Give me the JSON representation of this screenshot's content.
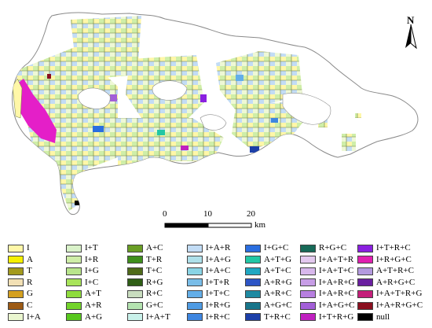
{
  "north_arrow": {
    "label": "N",
    "icon": "north-arrow-icon"
  },
  "scale_bar": {
    "ticks": [
      "0",
      "10",
      "20"
    ],
    "unit": "km"
  },
  "legend": {
    "columns": [
      [
        {
          "label": "I",
          "color": "#fff7a8"
        },
        {
          "label": "A",
          "color": "#f5f000"
        },
        {
          "label": "T",
          "color": "#a39a1e"
        },
        {
          "label": "R",
          "color": "#f2e0b5"
        },
        {
          "label": "G",
          "color": "#d4a020"
        },
        {
          "label": "C",
          "color": "#9c5a14"
        },
        {
          "label": "I+A",
          "color": "#eaf6cf"
        }
      ],
      [
        {
          "label": "I+T",
          "color": "#d9f2c9"
        },
        {
          "label": "I+R",
          "color": "#cfeea8"
        },
        {
          "label": "I+G",
          "color": "#b9e58c"
        },
        {
          "label": "I+C",
          "color": "#a8e45a"
        },
        {
          "label": "A+T",
          "color": "#8fdc3c"
        },
        {
          "label": "A+R",
          "color": "#72d32a"
        },
        {
          "label": "A+G",
          "color": "#58c81e"
        }
      ],
      [
        {
          "label": "A+C",
          "color": "#6a9e25"
        },
        {
          "label": "T+R",
          "color": "#3f8f1c"
        },
        {
          "label": "T+C",
          "color": "#4f6a1a"
        },
        {
          "label": "R+G",
          "color": "#2f5e16"
        },
        {
          "label": "R+C",
          "color": "#c9ddbf"
        },
        {
          "label": "G+C",
          "color": "#b4e3b0"
        },
        {
          "label": "I+A+T",
          "color": "#c9f1ea"
        }
      ],
      [
        {
          "label": "I+A+R",
          "color": "#c2dcf5"
        },
        {
          "label": "I+A+G",
          "color": "#aee0ea"
        },
        {
          "label": "I+A+C",
          "color": "#8ad4e5"
        },
        {
          "label": "I+T+R",
          "color": "#79bde8"
        },
        {
          "label": "I+T+C",
          "color": "#63aee8"
        },
        {
          "label": "I+R+G",
          "color": "#4f9be3"
        },
        {
          "label": "I+R+C",
          "color": "#3e86e0"
        }
      ],
      [
        {
          "label": "I+G+C",
          "color": "#2a6ee0"
        },
        {
          "label": "A+T+G",
          "color": "#22c7a5"
        },
        {
          "label": "A+T+C",
          "color": "#1fa7c2"
        },
        {
          "label": "A+R+G",
          "color": "#2d55c6"
        },
        {
          "label": "A+R+C",
          "color": "#1f8aa2"
        },
        {
          "label": "A+G+C",
          "color": "#18758a"
        },
        {
          "label": "T+R+C",
          "color": "#1c3fa8"
        }
      ],
      [
        {
          "label": "R+G+C",
          "color": "#176a58"
        },
        {
          "label": "I+A+T+R",
          "color": "#e3c9ef"
        },
        {
          "label": "I+A+T+C",
          "color": "#d8b8ec"
        },
        {
          "label": "I+A+R+G",
          "color": "#c79de6"
        },
        {
          "label": "I+A+R+C",
          "color": "#b77fe0"
        },
        {
          "label": "I+A+G+C",
          "color": "#a35fd8"
        },
        {
          "label": "I+T+R+G",
          "color": "#c020c0"
        }
      ],
      [
        {
          "label": "I+T+R+C",
          "color": "#8a20e0"
        },
        {
          "label": "I+R+G+C",
          "color": "#e01fb0"
        },
        {
          "label": "A+T+R+C",
          "color": "#b49adf"
        },
        {
          "label": "A+R+G+C",
          "color": "#6a1fa0"
        },
        {
          "label": "I+A+T+R+G",
          "color": "#c41e7a"
        },
        {
          "label": "I+A+R+G+C",
          "color": "#8a0f1f"
        },
        {
          "label": "null",
          "color": "#000000"
        }
      ]
    ]
  }
}
